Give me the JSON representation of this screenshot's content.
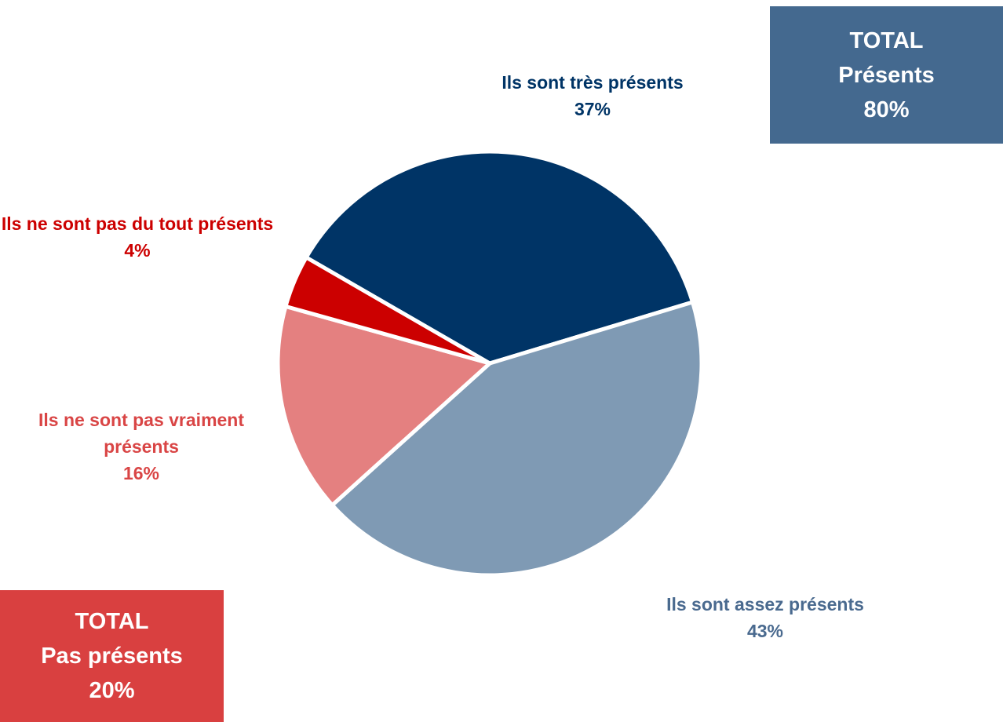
{
  "chart_data": {
    "type": "pie",
    "categories": [
      "Ils sont très présents",
      "Ils sont assez présents",
      "Ils ne sont pas vraiment présents",
      "Ils ne sont pas du tout présents"
    ],
    "values": [
      37,
      43,
      16,
      4
    ],
    "value_labels": [
      "37%",
      "43%",
      "16%",
      "4%"
    ],
    "colors": [
      "#003466",
      "#7f9ab4",
      "#e48080",
      "#cc0000"
    ],
    "label_colors": [
      "#003466",
      "#4a6a8f",
      "#d94545",
      "#cc0000"
    ],
    "annotations": [
      {
        "title": "TOTAL",
        "label": "Présents",
        "value_label": "80%",
        "color": "#44698f"
      },
      {
        "title": "TOTAL",
        "label": "Pas présents",
        "value_label": "20%",
        "color": "#d94040"
      }
    ]
  }
}
